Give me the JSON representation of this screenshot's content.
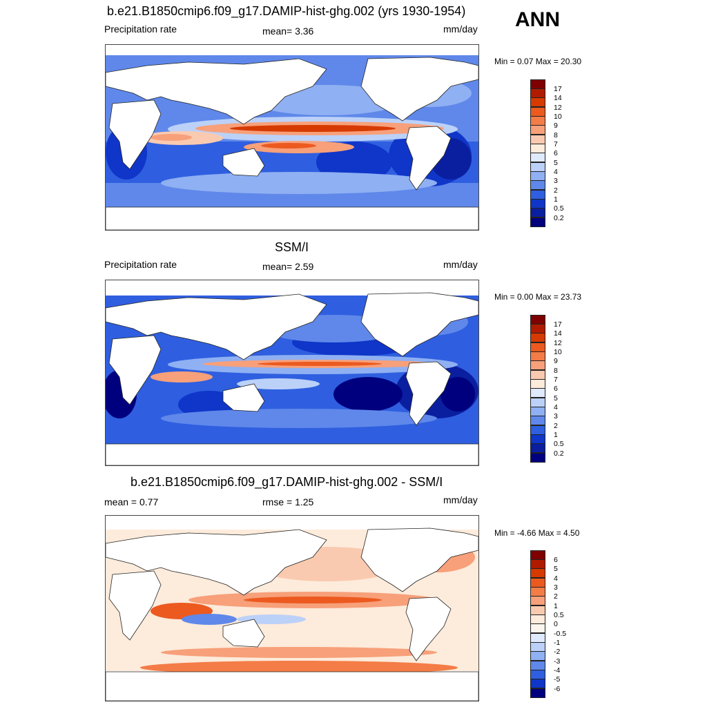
{
  "season": "ANN",
  "panels": [
    {
      "id": "model",
      "title": "b.e21.B1850cmip6.f09_g17.DAMIP-hist-ghg.002 (yrs 1930-1954)",
      "left_label": "Precipitation rate",
      "center_label": "mean=   3.36",
      "units": "mm/day",
      "minmax": "Min =   0.07 Max =  20.30",
      "colorbar": {
        "labels": [
          "17",
          "14",
          "12",
          "10",
          "9",
          "8",
          "7",
          "6",
          "5",
          "4",
          "3",
          "2",
          "1",
          "0.5",
          "0.2"
        ],
        "colors": [
          "#7f0000",
          "#b01b00",
          "#d63a00",
          "#ec5a1f",
          "#f47c47",
          "#f7a07a",
          "#facab0",
          "#fdebdb",
          "#dfeafc",
          "#bcd1f8",
          "#8fb0f2",
          "#5f88ea",
          "#2f5fe0",
          "#0f36c8",
          "#0a1fa0",
          "#00007f"
        ]
      }
    },
    {
      "id": "obs",
      "title": "SSM/I",
      "left_label": "Precipitation rate",
      "center_label": "mean=   2.59",
      "units": "mm/day",
      "minmax": "Min =   0.00 Max =  23.73",
      "colorbar": {
        "labels": [
          "17",
          "14",
          "12",
          "10",
          "9",
          "8",
          "7",
          "6",
          "5",
          "4",
          "3",
          "2",
          "1",
          "0.5",
          "0.2"
        ],
        "colors": [
          "#7f0000",
          "#b01b00",
          "#d63a00",
          "#ec5a1f",
          "#f47c47",
          "#f7a07a",
          "#facab0",
          "#fdebdb",
          "#dfeafc",
          "#bcd1f8",
          "#8fb0f2",
          "#5f88ea",
          "#2f5fe0",
          "#0f36c8",
          "#0a1fa0",
          "#00007f"
        ]
      }
    },
    {
      "id": "diff",
      "title": "b.e21.B1850cmip6.f09_g17.DAMIP-hist-ghg.002 - SSM/I",
      "left_label": "mean =   0.77",
      "center_label": "rmse =   1.25",
      "units": "mm/day",
      "minmax": "Min =  -4.66 Max =   4.50",
      "colorbar": {
        "labels": [
          "6",
          "5",
          "4",
          "3",
          "2",
          "1",
          "0.5",
          "0",
          "-0.5",
          "-1",
          "-2",
          "-3",
          "-4",
          "-5",
          "-6"
        ],
        "colors": [
          "#7f0000",
          "#b01b00",
          "#d63a00",
          "#ec5a1f",
          "#f47c47",
          "#f7a07a",
          "#facab0",
          "#fdebdb",
          "#fbf5ef",
          "#dfeafc",
          "#bcd1f8",
          "#8fb0f2",
          "#5f88ea",
          "#2f5fe0",
          "#0f36c8",
          "#00007f"
        ]
      }
    }
  ]
}
